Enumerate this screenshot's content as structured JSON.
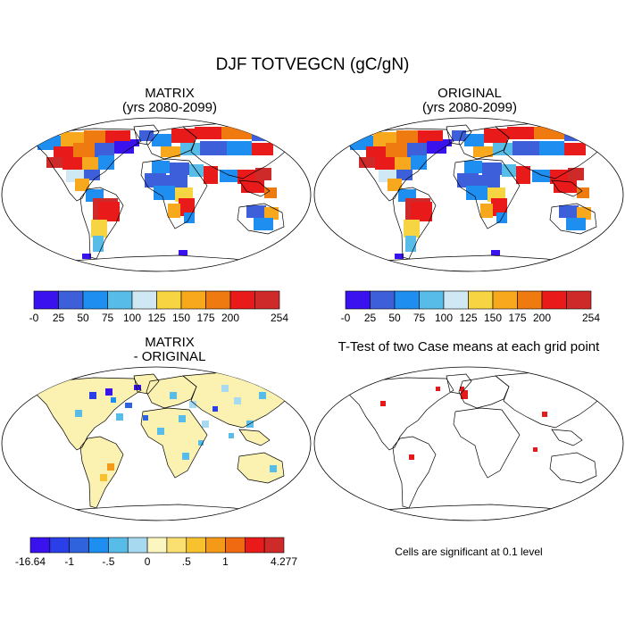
{
  "title": "DJF TOTVEGCN (gC/gN)",
  "panels": [
    {
      "key": "matrix",
      "title_lines": [
        "MATRIX",
        "(yrs 2080-2099)"
      ]
    },
    {
      "key": "original",
      "title_lines": [
        "ORIGINAL",
        "(yrs 2080-2099)"
      ]
    },
    {
      "key": "difference",
      "title_lines": [
        "MATRIX",
        "- ORIGINAL"
      ]
    },
    {
      "key": "ttest",
      "title_lines": [
        "T-Test of two Case means at each grid point"
      ]
    }
  ],
  "colorbar_top": {
    "tick_labels": [
      "-0",
      "25",
      "50",
      "75",
      "100",
      "125",
      "150",
      "175",
      "200",
      "254"
    ],
    "colors": [
      "#3a12ee",
      "#3d5fd9",
      "#1e8ef0",
      "#58bce9",
      "#cfe8f4",
      "#f7d442",
      "#f7a81c",
      "#ef7a10",
      "#e81a1a",
      "#cf2a2a"
    ]
  },
  "colorbar_bottom": {
    "tick_labels": [
      "-16.64",
      "-1",
      "-.5",
      "0",
      ".5",
      "1",
      "4.277"
    ],
    "colors": [
      "#3a12ee",
      "#2a3fe8",
      "#2f63de",
      "#1e8ef0",
      "#58bce9",
      "#a7d9f0",
      "#fbf6c0",
      "#f9e070",
      "#f7c22e",
      "#f59a18",
      "#ef6a10",
      "#e81a1a",
      "#cf2a2a"
    ]
  },
  "ttest_note": "Cells are significant at 0.1 level",
  "land_colors": {
    "ocean": "#ffffff",
    "coast": "#000000",
    "diff_land": "#fbf2b2",
    "ttest_sig": "#e3191c"
  }
}
